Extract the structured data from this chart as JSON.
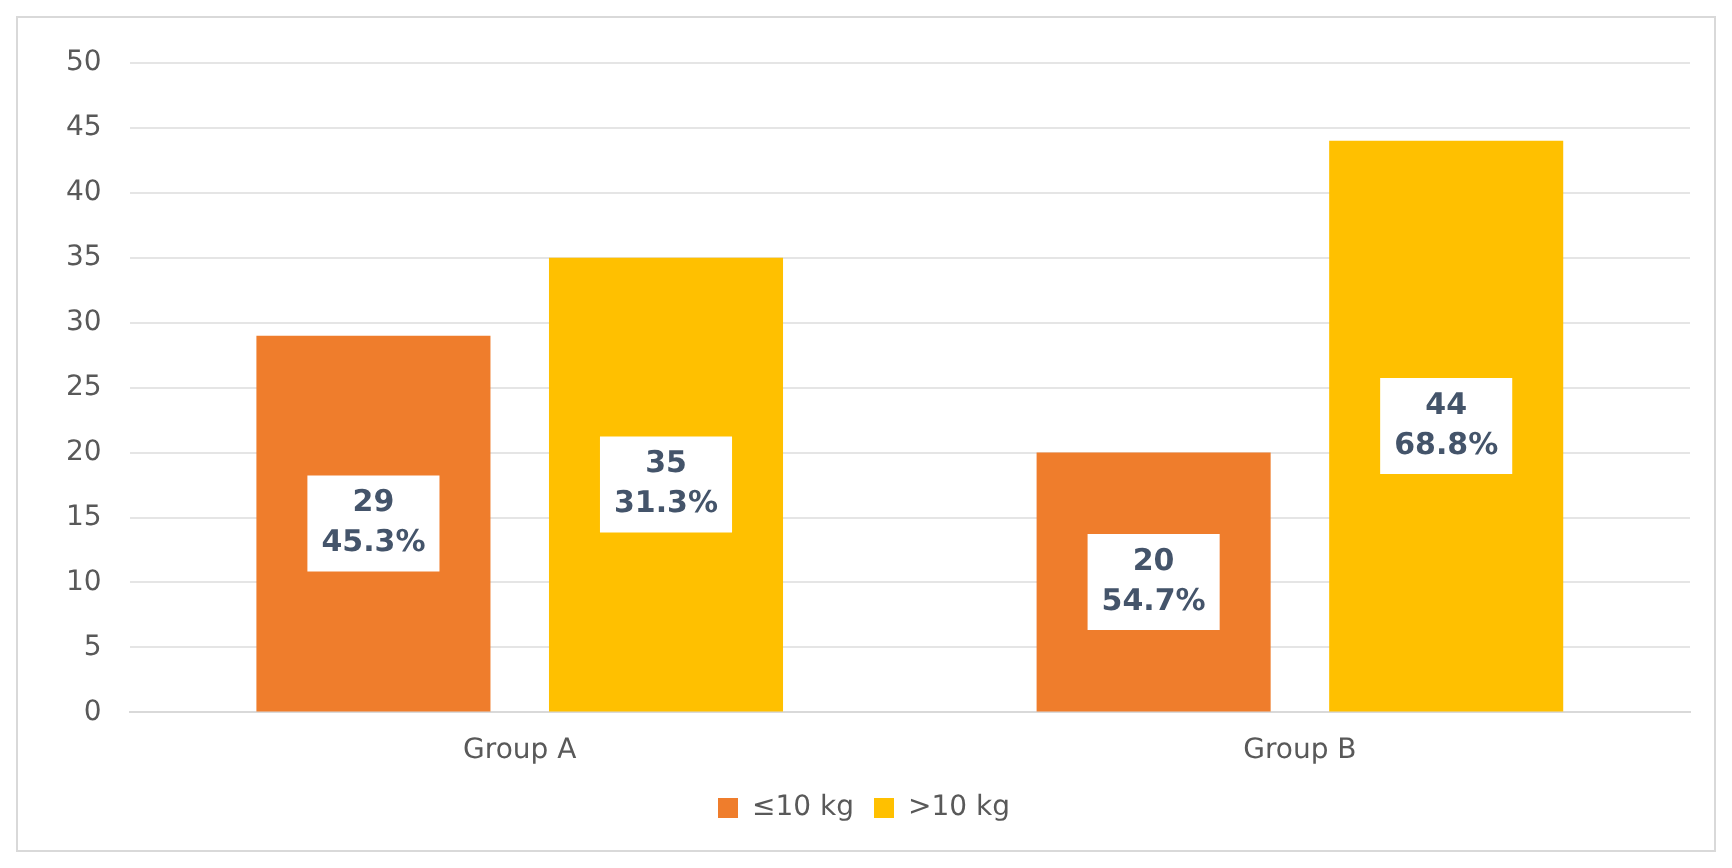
{
  "chart_data": {
    "type": "bar",
    "categories": [
      "Group A",
      "Group B"
    ],
    "series": [
      {
        "name": "≤10 kg",
        "color": "#ef7d2c",
        "values": [
          29,
          20
        ],
        "value_labels": [
          "29\n45.3%",
          "20\n54.7%"
        ]
      },
      {
        "name": ">10 kg",
        "color": "#ffc000",
        "values": [
          35,
          44
        ],
        "value_labels": [
          "35\n31.3%",
          "44\n68.8%"
        ]
      }
    ],
    "ylim": [
      0,
      50
    ],
    "yticks": [
      0,
      5,
      10,
      15,
      20,
      25,
      30,
      35,
      40,
      45,
      50
    ],
    "grid": "y",
    "legend": "bottom"
  }
}
